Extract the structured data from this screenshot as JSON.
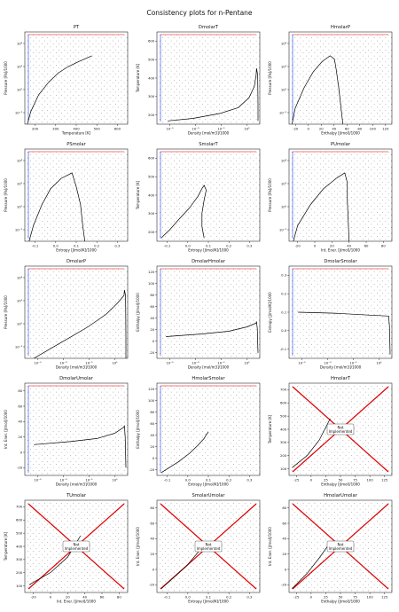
{
  "suptitle": "Consistency plots for n-Pentane",
  "chart_data": [
    {
      "type": "scatter",
      "title": "PT",
      "xlabel": "Temperature [K]",
      "ylabel": "Pressure [Pa]/1000",
      "xlim": [
        130,
        650
      ],
      "ylim": [
        -3,
        5.8
      ],
      "ylog": true,
      "xticks": [
        "200",
        "300",
        "400",
        "500",
        "600"
      ],
      "yticks": [
        "10⁻²",
        "10⁰",
        "10²",
        "10⁴"
      ],
      "curves": [
        {
          "name": "saturation",
          "color": "#000000",
          "points": [
            [
              143,
              -3
            ],
            [
              160,
              -1.8
            ],
            [
              200,
              -0.2
            ],
            [
              250,
              1.0
            ],
            [
              300,
              1.9
            ],
            [
              350,
              2.5
            ],
            [
              400,
              2.95
            ],
            [
              469,
              3.52
            ]
          ]
        }
      ]
    },
    {
      "type": "scatter",
      "title": "DmolarT",
      "xlabel": "Density [mol/m3]/1000",
      "ylabel": "Temperature [K]",
      "xlim": [
        -5.5,
        0.2
      ],
      "ylim": [
        130,
        690
      ],
      "xlog": true,
      "xticks": [
        "10⁻⁵",
        "10⁻³",
        "10⁻¹",
        "10¹"
      ],
      "yticks": [
        "200",
        "300",
        "400",
        "500",
        "600"
      ],
      "curves": [
        {
          "name": "saturation",
          "color": "#000000",
          "points": [
            [
              -4.9,
              150
            ],
            [
              -3.5,
              165
            ],
            [
              -2,
              195
            ],
            [
              -1,
              230
            ],
            [
              -0.4,
              290
            ],
            [
              -0.1,
              360
            ],
            [
              0.0,
              430
            ],
            [
              0.02,
              469
            ],
            [
              0.08,
              430
            ],
            [
              0.09,
              350
            ],
            [
              0.1,
              250
            ],
            [
              0.1,
              150
            ]
          ]
        }
      ]
    },
    {
      "type": "scatter",
      "title": "HmolarP",
      "xlabel": "Enthalpy [J/mol]/1000",
      "ylabel": "Pressure [Pa]/1000",
      "xlim": [
        -30,
        140
      ],
      "ylim": [
        -3,
        5.8
      ],
      "ylog": true,
      "xticks": [
        "-20",
        "0",
        "20",
        "40",
        "60",
        "80",
        "100",
        "120"
      ],
      "yticks": [
        "10⁻²",
        "10⁰",
        "10²",
        "10⁴"
      ],
      "curves": [
        {
          "name": "saturation",
          "color": "#000000",
          "points": [
            [
              -25,
              -3
            ],
            [
              -20,
              -1.5
            ],
            [
              -5,
              0.5
            ],
            [
              10,
              2
            ],
            [
              25,
              3.0
            ],
            [
              38,
              3.52
            ],
            [
              45,
              3.2
            ],
            [
              48,
              2.2
            ],
            [
              52,
              0.5
            ],
            [
              56,
              -1.5
            ],
            [
              59,
              -3
            ]
          ]
        }
      ]
    },
    {
      "type": "scatter",
      "title": "PSmolar",
      "xlabel": "Entropy [J/mol/K]/1000",
      "ylabel": "Pressure [Pa]/1000",
      "xlim": [
        -0.12,
        0.36
      ],
      "ylim": [
        -3,
        5.8
      ],
      "ylog": true,
      "xticks": [
        "-0.1",
        "0.0",
        "0.1",
        "0.2",
        "0.3"
      ],
      "yticks": [
        "10⁻²",
        "10⁰",
        "10²",
        "10⁴"
      ],
      "curves": [
        {
          "name": "saturation",
          "color": "#000000",
          "points": [
            [
              -0.1,
              -3
            ],
            [
              -0.08,
              -1.5
            ],
            [
              -0.04,
              0.5
            ],
            [
              0.0,
              2.0
            ],
            [
              0.05,
              3.0
            ],
            [
              0.1,
              3.52
            ],
            [
              0.12,
              2.2
            ],
            [
              0.14,
              0.5
            ],
            [
              0.15,
              -1.5
            ],
            [
              0.16,
              -3
            ]
          ]
        }
      ]
    },
    {
      "type": "scatter",
      "title": "SmolarT",
      "xlabel": "Entropy [J/mol/K]/1000",
      "ylabel": "Temperature [K]",
      "xlim": [
        -0.12,
        0.36
      ],
      "ylim": [
        130,
        690
      ],
      "xticks": [
        "-0.1",
        "0.0",
        "0.1",
        "0.2",
        "0.3"
      ],
      "yticks": [
        "200",
        "300",
        "400",
        "500",
        "600"
      ],
      "curves": [
        {
          "name": "saturation",
          "color": "#000000",
          "points": [
            [
              -0.1,
              150
            ],
            [
              -0.06,
              200
            ],
            [
              -0.02,
              260
            ],
            [
              0.03,
              330
            ],
            [
              0.07,
              400
            ],
            [
              0.09,
              450
            ],
            [
              0.1,
              469
            ],
            [
              0.11,
              440
            ],
            [
              0.1,
              380
            ],
            [
              0.09,
              300
            ],
            [
              0.09,
              220
            ],
            [
              0.1,
              150
            ]
          ]
        }
      ]
    },
    {
      "type": "scatter",
      "title": "PUmolar",
      "xlabel": "Int. Ener. [J/mol]/1000",
      "ylabel": "Pressure [Pa]/1000",
      "xlim": [
        -30,
        90
      ],
      "ylim": [
        -3,
        5.8
      ],
      "ylog": true,
      "xticks": [
        "-20",
        "0",
        "20",
        "40",
        "60",
        "80"
      ],
      "yticks": [
        "10⁻²",
        "10⁰",
        "10²",
        "10⁴"
      ],
      "curves": [
        {
          "name": "saturation",
          "color": "#000000",
          "points": [
            [
              -25,
              -3
            ],
            [
              -20,
              -1.5
            ],
            [
              -5,
              0.5
            ],
            [
              10,
              2
            ],
            [
              25,
              3.0
            ],
            [
              35,
              3.52
            ],
            [
              38,
              2.6
            ],
            [
              38,
              1
            ],
            [
              39,
              -1
            ],
            [
              40,
              -3
            ]
          ]
        }
      ]
    },
    {
      "type": "scatter",
      "title": "DmolarP",
      "xlabel": "Density [mol/m3]/1000",
      "ylabel": "Pressure [Pa]/1000",
      "xlim": [
        -5.5,
        0.2
      ],
      "ylim": [
        -3,
        5.8
      ],
      "xlog": true,
      "ylog": true,
      "xticks": [
        "10⁻⁵",
        "10⁻³",
        "10⁻¹",
        "10¹"
      ],
      "yticks": [
        "10⁻²",
        "10⁰",
        "10²",
        "10⁴"
      ],
      "curves": [
        {
          "name": "saturation",
          "color": "#000000",
          "points": [
            [
              -5,
              -3
            ],
            [
              -4,
              -2
            ],
            [
              -3,
              -1
            ],
            [
              -2,
              0
            ],
            [
              -1,
              1.2
            ],
            [
              -0.4,
              2.2
            ],
            [
              0,
              3.0
            ],
            [
              0.02,
              3.52
            ],
            [
              0.08,
              3.0
            ],
            [
              0.09,
              1.5
            ],
            [
              0.1,
              -1
            ],
            [
              0.1,
              -3
            ]
          ]
        }
      ]
    },
    {
      "type": "scatter",
      "title": "DmolarHmolar",
      "xlabel": "Density [mol/m3]/1000",
      "ylabel": "Enthalpy [J/mol]/1000",
      "xlim": [
        -5.5,
        0.2
      ],
      "ylim": [
        -30,
        140
      ],
      "xlog": true,
      "xticks": [
        "10⁻⁵",
        "10⁻³",
        "10⁻¹",
        "10¹"
      ],
      "yticks": [
        "-20",
        "0",
        "20",
        "40",
        "60",
        "80",
        "100",
        "120"
      ],
      "curves": [
        {
          "name": "saturation",
          "color": "#000000",
          "points": [
            [
              -5,
              10
            ],
            [
              -3,
              15
            ],
            [
              -1.5,
              20
            ],
            [
              -0.5,
              28
            ],
            [
              0,
              35
            ],
            [
              0.02,
              38
            ],
            [
              0.06,
              25
            ],
            [
              0.08,
              0
            ],
            [
              0.1,
              -20
            ]
          ]
        }
      ]
    },
    {
      "type": "scatter",
      "title": "DmolarSmolar",
      "xlabel": "Density [mol/m3]/1000",
      "ylabel": "Entropy [J/mol/K]/1000",
      "xlim": [
        -5.5,
        0.2
      ],
      "ylim": [
        -0.12,
        0.36
      ],
      "xlog": true,
      "xticks": [
        "10⁻⁵",
        "10⁻³",
        "10⁻¹",
        "10¹"
      ],
      "yticks": [
        "-0.1",
        "0.0",
        "0.1",
        "0.2",
        "0.3"
      ],
      "curves": [
        {
          "name": "saturation",
          "color": "#000000",
          "points": [
            [
              -5,
              0.12
            ],
            [
              -3,
              0.115
            ],
            [
              -1,
              0.105
            ],
            [
              0,
              0.1
            ],
            [
              0.02,
              0.1
            ],
            [
              0.06,
              0.05
            ],
            [
              0.08,
              -0.02
            ],
            [
              0.1,
              -0.1
            ]
          ]
        }
      ]
    },
    {
      "type": "scatter",
      "title": "DmolarUmolar",
      "xlabel": "Density [mol/m3]/1000",
      "ylabel": "Int. Ener. [J/mol]/1000",
      "xlim": [
        -5.5,
        0.2
      ],
      "ylim": [
        -30,
        90
      ],
      "xlog": true,
      "xticks": [
        "10⁻⁵",
        "10⁻³",
        "10⁻¹",
        "10¹"
      ],
      "yticks": [
        "-20",
        "0",
        "20",
        "40",
        "60",
        "80"
      ],
      "curves": [
        {
          "name": "saturation",
          "color": "#000000",
          "points": [
            [
              -5,
              10
            ],
            [
              -3,
              14
            ],
            [
              -1.5,
              18
            ],
            [
              -0.5,
              25
            ],
            [
              0,
              33
            ],
            [
              0.02,
              35
            ],
            [
              0.06,
              20
            ],
            [
              0.08,
              0
            ],
            [
              0.1,
              -20
            ]
          ]
        }
      ]
    },
    {
      "type": "scatter",
      "title": "HmolarSmolar",
      "xlabel": "Entropy [J/mol/K]/1000",
      "ylabel": "Enthalpy [J/mol]/1000",
      "xlim": [
        -0.12,
        0.36
      ],
      "ylim": [
        -30,
        140
      ],
      "xticks": [
        "-0.1",
        "0.0",
        "0.1",
        "0.2",
        "0.3"
      ],
      "yticks": [
        "-20",
        "0",
        "20",
        "40",
        "60",
        "80",
        "100",
        "120"
      ],
      "curves": [
        {
          "name": "saturation",
          "color": "#000000",
          "points": [
            [
              -0.1,
              -25
            ],
            [
              -0.06,
              -15
            ],
            [
              -0.02,
              -5
            ],
            [
              0.03,
              10
            ],
            [
              0.07,
              25
            ],
            [
              0.1,
              38
            ],
            [
              0.11,
              45
            ],
            [
              0.12,
              50
            ]
          ]
        }
      ]
    },
    {
      "type": "scatter",
      "title": "HmolarT",
      "xlabel": "Enthalpy [J/mol]/1000",
      "ylabel": "Temperature [K]",
      "xlim": [
        -30,
        140
      ],
      "ylim": [
        100,
        700
      ],
      "xticks": [
        "-25",
        "0",
        "25",
        "50",
        "75",
        "100",
        "125"
      ],
      "yticks": [
        "100",
        "200",
        "300",
        "400",
        "500",
        "600",
        "700"
      ],
      "note": "Not Implemented",
      "curves": [
        {
          "name": "saturation",
          "color": "#000000",
          "points": [
            [
              -25,
              150
            ],
            [
              0,
              230
            ],
            [
              20,
              330
            ],
            [
              38,
              469
            ]
          ]
        }
      ]
    },
    {
      "type": "scatter",
      "title": "TUmolar",
      "xlabel": "Int. Ener. [J/mol]/1000",
      "ylabel": "Temperature [K]",
      "xlim": [
        -30,
        90
      ],
      "ylim": [
        100,
        700
      ],
      "xticks": [
        "-20",
        "0",
        "20",
        "40",
        "60",
        "80"
      ],
      "yticks": [
        "100",
        "200",
        "300",
        "400",
        "500",
        "600",
        "700"
      ],
      "note": "Not Implemented",
      "curves": [
        {
          "name": "saturation",
          "color": "#000000",
          "points": [
            [
              -25,
              150
            ],
            [
              0,
              230
            ],
            [
              20,
              330
            ],
            [
              35,
              469
            ]
          ]
        }
      ]
    },
    {
      "type": "scatter",
      "title": "SmolarUmolar",
      "xlabel": "Entropy [J/mol/K]/1000",
      "ylabel": "Int. Ener. [J/mol]/1000",
      "xlim": [
        -0.12,
        0.36
      ],
      "ylim": [
        -30,
        90
      ],
      "xticks": [
        "-0.1",
        "0.0",
        "0.1",
        "0.2",
        "0.3"
      ],
      "yticks": [
        "-20",
        "0",
        "20",
        "40",
        "60",
        "80"
      ],
      "note": "Not Implemented",
      "curves": [
        {
          "name": "saturation",
          "color": "#000000",
          "points": [
            [
              -0.1,
              -25
            ],
            [
              -0.04,
              -10
            ],
            [
              0.02,
              5
            ],
            [
              0.08,
              25
            ],
            [
              0.1,
              35
            ]
          ]
        }
      ]
    },
    {
      "type": "scatter",
      "title": "HmolarUmolar",
      "xlabel": "Enthalpy [J/mol]/1000",
      "ylabel": "Int. Ener. [J/mol]/1000",
      "xlim": [
        -30,
        140
      ],
      "ylim": [
        -30,
        90
      ],
      "xticks": [
        "-25",
        "0",
        "25",
        "50",
        "75",
        "100",
        "125"
      ],
      "yticks": [
        "-20",
        "0",
        "20",
        "40",
        "60",
        "80"
      ],
      "note": "Not Implemented",
      "curves": [
        {
          "name": "saturation",
          "color": "#000000",
          "points": [
            [
              -25,
              -25
            ],
            [
              0,
              -5
            ],
            [
              20,
              15
            ],
            [
              38,
              35
            ]
          ]
        }
      ]
    }
  ]
}
